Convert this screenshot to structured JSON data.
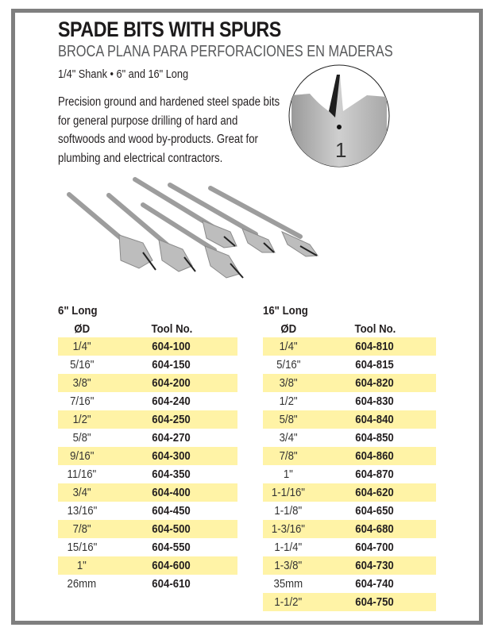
{
  "header": {
    "title": "SPADE BITS WITH SPURS",
    "subtitle": "BROCA PLANA PARA PERFORACIONES EN MADERAS",
    "spec": "1/4\" Shank • 6\" and 16\" Long",
    "description": "Precision ground and hardened steel spade bits for general purpose drilling of hard and softwoods and wood by-products. Great for plumbing and electrical contractors."
  },
  "colors": {
    "border": "#7f7f7f",
    "row_highlight": "#fff3a6"
  },
  "tables": [
    {
      "caption": "6\" Long",
      "headers": [
        "ØD",
        "Tool No."
      ],
      "rows": [
        [
          "1/4\"",
          "604-100"
        ],
        [
          "5/16\"",
          "604-150"
        ],
        [
          "3/8\"",
          "604-200"
        ],
        [
          "7/16\"",
          "604-240"
        ],
        [
          "1/2\"",
          "604-250"
        ],
        [
          "5/8\"",
          "604-270"
        ],
        [
          "9/16\"",
          "604-300"
        ],
        [
          "11/16\"",
          "604-350"
        ],
        [
          "3/4\"",
          "604-400"
        ],
        [
          "13/16\"",
          "604-450"
        ],
        [
          "7/8\"",
          "604-500"
        ],
        [
          "15/16\"",
          "604-550"
        ],
        [
          "1\"",
          "604-600"
        ],
        [
          "26mm",
          "604-610"
        ]
      ]
    },
    {
      "caption": "16\" Long",
      "headers": [
        "ØD",
        "Tool No."
      ],
      "rows": [
        [
          "1/4\"",
          "604-810"
        ],
        [
          "5/16\"",
          "604-815"
        ],
        [
          "3/8\"",
          "604-820"
        ],
        [
          "1/2\"",
          "604-830"
        ],
        [
          "5/8\"",
          "604-840"
        ],
        [
          "3/4\"",
          "604-850"
        ],
        [
          "7/8\"",
          "604-860"
        ],
        [
          "1\"",
          "604-870"
        ],
        [
          "1-1/16\"",
          "604-620"
        ],
        [
          "1-1/8\"",
          "604-650"
        ],
        [
          "1-3/16\"",
          "604-680"
        ],
        [
          "1-1/4\"",
          "604-700"
        ],
        [
          "1-3/8\"",
          "604-730"
        ],
        [
          "35mm",
          "604-740"
        ],
        [
          "1-1/2\"",
          "604-750"
        ]
      ]
    }
  ]
}
